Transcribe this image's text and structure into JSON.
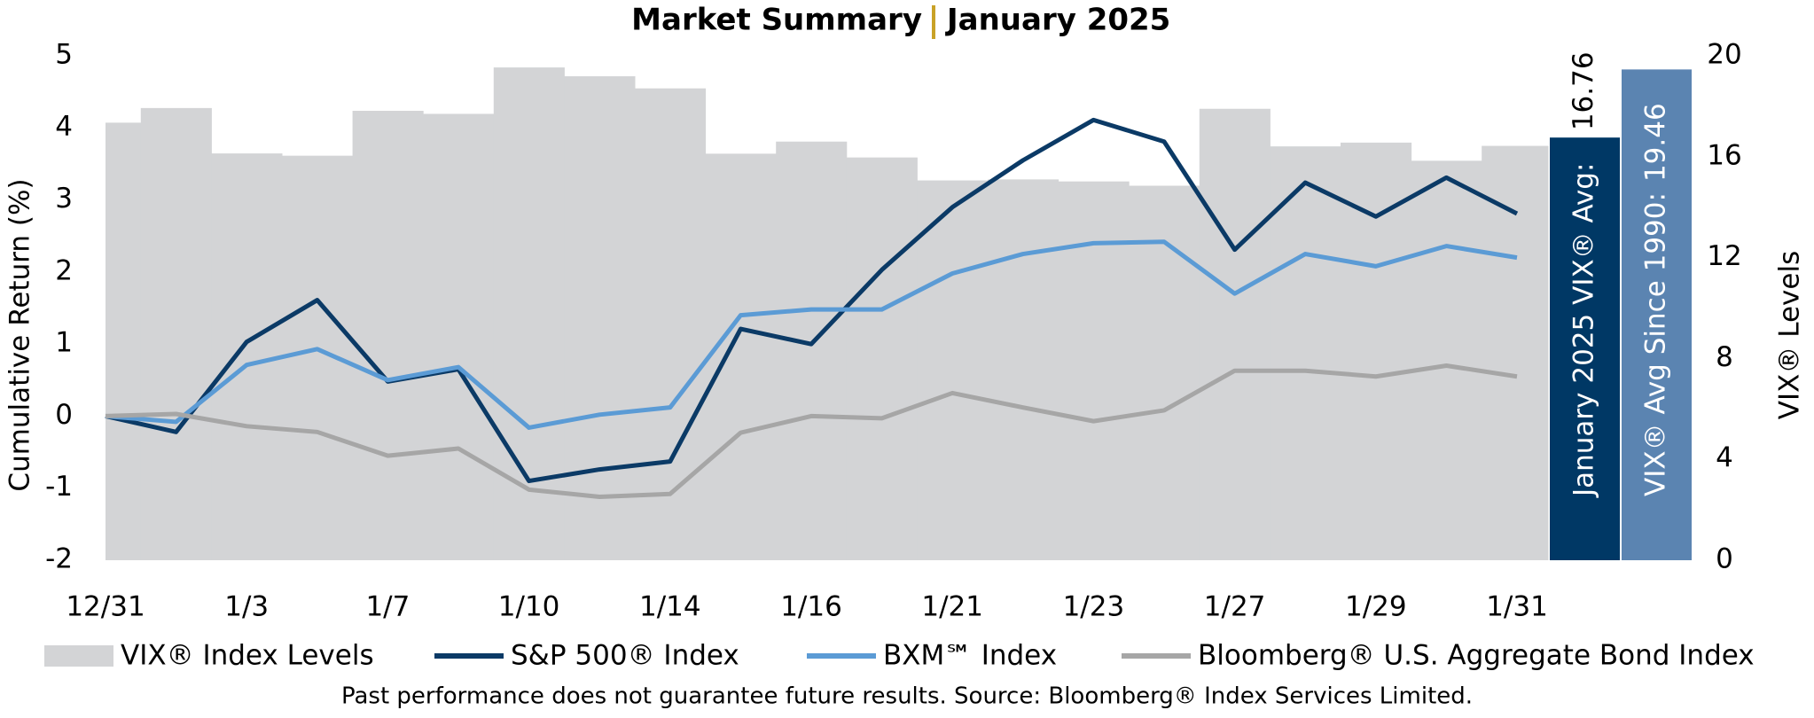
{
  "chart_data": {
    "type": "bar-line",
    "title": [
      "Market Summary",
      "January 2025"
    ],
    "y_label": "Cumulative Return (%)",
    "y2_label": "VIX® Levels",
    "footnote": "Past performance does not guarantee future results. Source: Bloomberg® Index Services Limited.",
    "categories": [
      "12/31",
      null,
      "1/3",
      null,
      "1/7",
      null,
      "1/10",
      null,
      "1/14",
      null,
      "1/16",
      null,
      "1/21",
      null,
      "1/23",
      null,
      "1/27",
      null,
      "1/29",
      null,
      "1/31"
    ],
    "ylim": [
      -2,
      5
    ],
    "yticks": [
      -2,
      -1,
      0,
      1,
      2,
      3,
      4,
      5
    ],
    "y2lim": [
      0,
      20
    ],
    "y2ticks": [
      0,
      4,
      8,
      12,
      16,
      20
    ],
    "series": [
      {
        "name": "VIX® Index Levels",
        "type": "bar",
        "axis": "y2",
        "color": "#d3d4d6",
        "values": [
          17.35,
          17.93,
          16.13,
          16.04,
          17.82,
          17.7,
          19.54,
          19.19,
          18.71,
          16.12,
          16.6,
          15.97,
          15.06,
          15.1,
          15.02,
          14.85,
          17.9,
          16.41,
          16.56,
          15.84,
          16.43
        ]
      },
      {
        "name": "S&P 500® Index",
        "type": "line",
        "color": "#0b3a66",
        "values": [
          0,
          -0.22,
          1.03,
          1.61,
          0.48,
          0.65,
          -0.9,
          -0.74,
          -0.63,
          1.21,
          1.0,
          2.03,
          2.9,
          3.55,
          4.11,
          3.81,
          2.31,
          3.24,
          2.77,
          3.31,
          2.81
        ]
      },
      {
        "name": "BXM℠ Index",
        "type": "line",
        "color": "#5b9bd5",
        "values": [
          0,
          -0.08,
          0.71,
          0.93,
          0.5,
          0.68,
          -0.16,
          0.02,
          0.12,
          1.4,
          1.48,
          1.48,
          1.98,
          2.25,
          2.4,
          2.42,
          1.7,
          2.25,
          2.08,
          2.36,
          2.2
        ]
      },
      {
        "name": "Bloomberg® U.S. Aggregate Bond Index",
        "type": "line",
        "color": "#a6a6a6",
        "values": [
          0,
          0.03,
          -0.14,
          -0.22,
          -0.55,
          -0.45,
          -1.02,
          -1.12,
          -1.08,
          -0.23,
          0,
          -0.03,
          0.32,
          0.12,
          -0.07,
          0.08,
          0.63,
          0.63,
          0.55,
          0.7,
          0.55
        ]
      }
    ],
    "avg_bars": [
      {
        "label": "January 2025 VIX® Avg:",
        "value": 16.76,
        "color": "#003865"
      },
      {
        "label": "VIX® Avg Since 1990:",
        "value": 19.46,
        "color": "#5b84b1"
      }
    ]
  }
}
